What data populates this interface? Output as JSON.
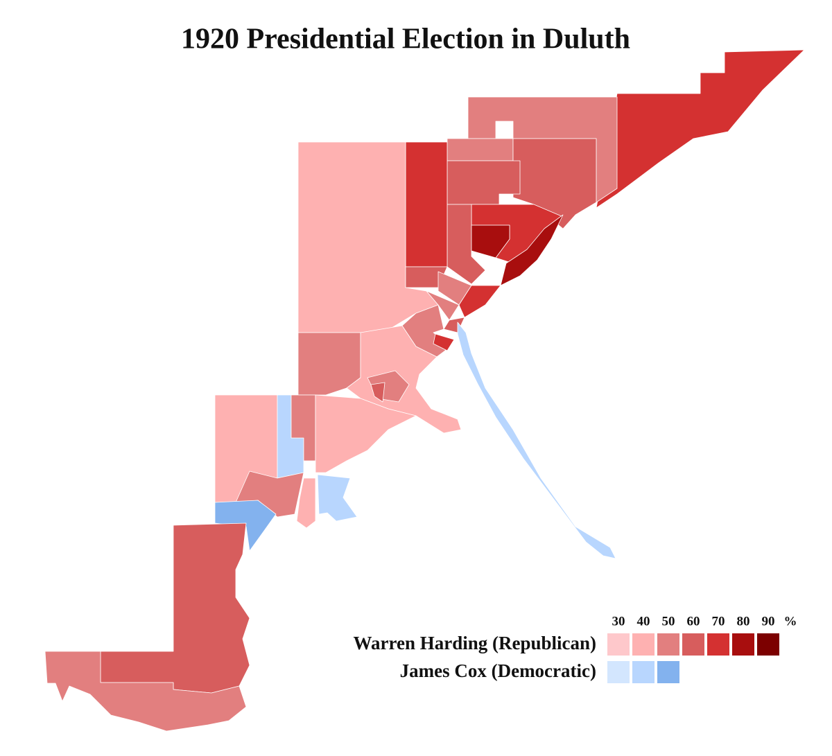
{
  "title": "1920 Presidential Election in Duluth",
  "legend": {
    "ticks": [
      30,
      40,
      50,
      60,
      70,
      80,
      90
    ],
    "unit": "%",
    "rows": [
      {
        "name": "Warren Harding (Republican)",
        "colors": [
          "#fec8cb",
          "#feb1b1",
          "#e27f7f",
          "#d75d5d",
          "#d43131",
          "#a80e0e",
          "#7c0000"
        ]
      },
      {
        "name": "James Cox (Democratic)",
        "colors": [
          "#d3e6fe",
          "#b8d6fe",
          "#83b2ee"
        ]
      }
    ]
  }
}
